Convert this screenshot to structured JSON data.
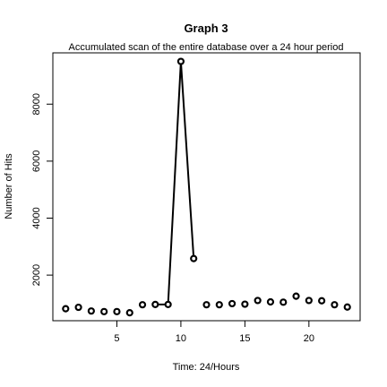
{
  "chart_data": {
    "type": "line",
    "title": "Graph 3",
    "subtitle": "Accumulated scan of the entire database over a 24 hour period",
    "xlabel": "Time: 24/Hours",
    "ylabel": "Number of Hits",
    "xlim": [
      0,
      24
    ],
    "ylim": [
      400,
      9800
    ],
    "x_ticks": [
      5,
      10,
      15,
      20
    ],
    "y_ticks": [
      2000,
      4000,
      6000,
      8000
    ],
    "grid": false,
    "marker": "open-circle",
    "series": [
      {
        "x": [
          1,
          2,
          3,
          4,
          5,
          6,
          7,
          8,
          9,
          10,
          11,
          12,
          13,
          14,
          15,
          16,
          17,
          18,
          19,
          20,
          21,
          22,
          23
        ],
        "values": [
          820,
          870,
          740,
          720,
          720,
          680,
          960,
          970,
          970,
          9500,
          2580,
          960,
          960,
          1000,
          980,
          1110,
          1060,
          1050,
          1260,
          1110,
          1100,
          960,
          880
        ],
        "segments_drawn": [
          [
            8,
            9
          ],
          [
            9,
            10
          ],
          [
            10,
            11
          ]
        ]
      }
    ]
  }
}
